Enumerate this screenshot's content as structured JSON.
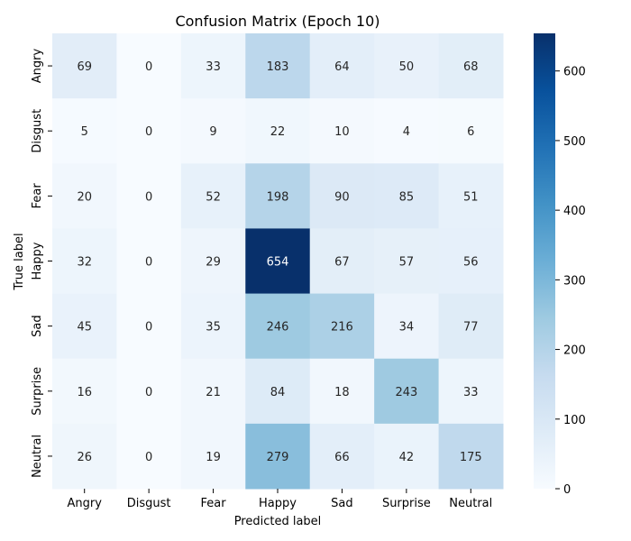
{
  "chart_data": {
    "type": "heatmap",
    "title": "Confusion Matrix (Epoch 10)",
    "xlabel": "Predicted label",
    "ylabel": "True label",
    "x_categories": [
      "Angry",
      "Disgust",
      "Fear",
      "Happy",
      "Sad",
      "Surprise",
      "Neutral"
    ],
    "y_categories": [
      "Angry",
      "Disgust",
      "Fear",
      "Happy",
      "Sad",
      "Surprise",
      "Neutral"
    ],
    "values": [
      [
        69,
        0,
        33,
        183,
        64,
        50,
        68
      ],
      [
        5,
        0,
        9,
        22,
        10,
        4,
        6
      ],
      [
        20,
        0,
        52,
        198,
        90,
        85,
        51
      ],
      [
        32,
        0,
        29,
        654,
        67,
        57,
        56
      ],
      [
        45,
        0,
        35,
        246,
        216,
        34,
        77
      ],
      [
        16,
        0,
        21,
        84,
        18,
        243,
        33
      ],
      [
        26,
        0,
        19,
        279,
        66,
        42,
        175
      ]
    ],
    "colormap": "Blues",
    "vmin": 0,
    "vmax": 654,
    "colorbar_ticks": [
      0,
      100,
      200,
      300,
      400,
      500,
      600
    ]
  }
}
